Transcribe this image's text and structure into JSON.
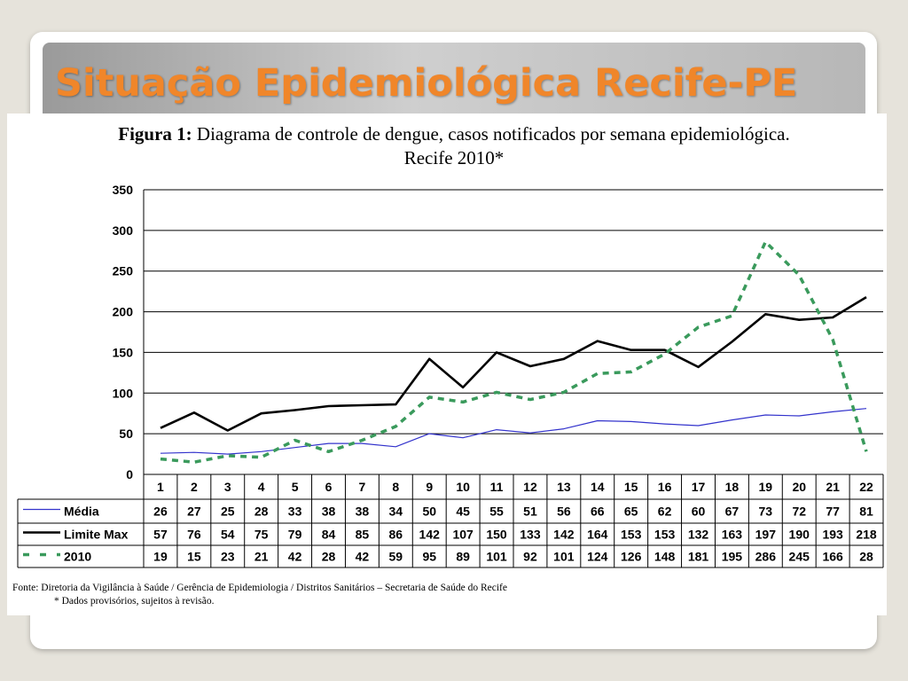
{
  "slide": {
    "title": "Situação Epidemiológica Recife-PE"
  },
  "figure": {
    "caption_label": "Figura 1:",
    "caption_text": " Diagrama de controle de dengue, casos notificados por semana epidemiológica.",
    "caption_line2": "Recife 2010*",
    "source": "Fonte: Diretoria da Vigilância à Saúde / Gerência de Epidemiologia / Distritos Sanitários – Secretaria de Saúde do Recife",
    "note": "* Dados provisórios, sujeitos à revisão."
  },
  "chart_data": {
    "type": "line",
    "categories": [
      "1",
      "2",
      "3",
      "4",
      "5",
      "6",
      "7",
      "8",
      "9",
      "10",
      "11",
      "12",
      "13",
      "14",
      "15",
      "16",
      "17",
      "18",
      "19",
      "20",
      "21",
      "22"
    ],
    "ylim": [
      0,
      350
    ],
    "yticks": [
      "0",
      "50",
      "100",
      "150",
      "200",
      "250",
      "300",
      "350"
    ],
    "grid": true,
    "legend": "table-below",
    "series": [
      {
        "name": "Média",
        "color": "#3333cc",
        "style": "solid-thin",
        "values": [
          26,
          27,
          25,
          28,
          33,
          38,
          38,
          34,
          50,
          45,
          55,
          51,
          56,
          66,
          65,
          62,
          60,
          67,
          73,
          72,
          77,
          81
        ]
      },
      {
        "name": "Limite Max",
        "color": "#000000",
        "style": "solid-thick",
        "values": [
          57,
          76,
          54,
          75,
          79,
          84,
          85,
          86,
          142,
          107,
          150,
          133,
          142,
          164,
          153,
          153,
          132,
          163,
          197,
          190,
          193,
          218
        ]
      },
      {
        "name": "2010",
        "color": "#3a9a5c",
        "style": "dashed",
        "values": [
          19,
          15,
          23,
          21,
          42,
          28,
          42,
          59,
          95,
          89,
          101,
          92,
          101,
          124,
          126,
          148,
          181,
          195,
          286,
          245,
          166,
          28
        ]
      }
    ]
  }
}
